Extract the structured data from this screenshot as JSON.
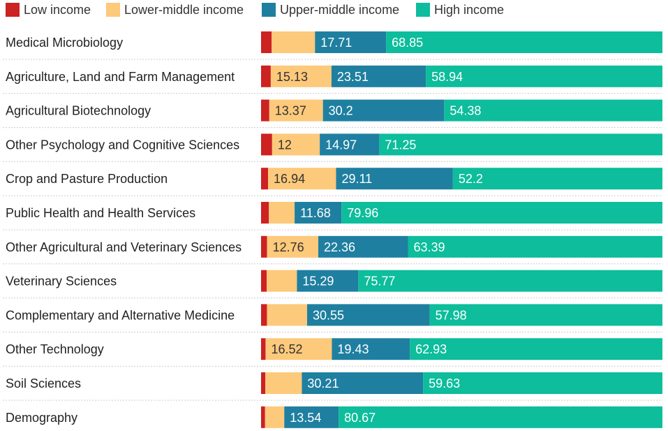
{
  "chart_data": {
    "type": "bar",
    "orientation": "horizontal",
    "stacked": true,
    "legend_position": "top-left",
    "colors": {
      "Low income": "#cc2222",
      "Lower-middle income": "#fdc97b",
      "Upper-middle income": "#1f7fa0",
      "High income": "#0dbd9c"
    },
    "series_names": [
      "Low income",
      "Lower-middle income",
      "Upper-middle income",
      "High income"
    ],
    "categories": [
      "Medical Microbiology",
      "Agriculture, Land and Farm Management",
      "Agricultural Biotechnology",
      "Other Psychology and Cognitive Sciences",
      "Crop and Pasture Production",
      "Public Health and Health Services",
      "Other Agricultural and Veterinary Sciences",
      "Veterinary Sciences",
      "Complementary and Alternative Medicine",
      "Other Technology",
      "Soil Sciences",
      "Demography"
    ],
    "series": [
      {
        "name": "Low income",
        "values": [
          2.64,
          2.42,
          2.05,
          2.78,
          1.75,
          1.95,
          1.49,
          1.39,
          1.47,
          1.12,
          1.06,
          1.0
        ]
      },
      {
        "name": "Lower-middle income",
        "values": [
          10.8,
          15.13,
          13.37,
          12,
          16.94,
          6.41,
          12.76,
          7.55,
          10.0,
          16.52,
          9.1,
          4.79
        ]
      },
      {
        "name": "Upper-middle income",
        "values": [
          17.71,
          23.51,
          30.2,
          14.97,
          29.11,
          11.68,
          22.36,
          15.29,
          30.55,
          19.43,
          30.21,
          13.54
        ]
      },
      {
        "name": "High income",
        "values": [
          68.85,
          58.94,
          54.38,
          71.25,
          52.2,
          79.96,
          63.39,
          75.77,
          57.98,
          62.93,
          59.63,
          80.67
        ]
      }
    ],
    "data_labels": [
      [
        "",
        "",
        "17.71",
        "68.85"
      ],
      [
        "",
        "15.13",
        "23.51",
        "58.94"
      ],
      [
        "",
        "13.37",
        "30.2",
        "54.38"
      ],
      [
        "",
        "12",
        "14.97",
        "71.25"
      ],
      [
        "",
        "16.94",
        "29.11",
        "52.2"
      ],
      [
        "",
        "",
        "11.68",
        "79.96"
      ],
      [
        "",
        "12.76",
        "22.36",
        "63.39"
      ],
      [
        "",
        "",
        "15.29",
        "75.77"
      ],
      [
        "",
        "",
        "30.55",
        "57.98"
      ],
      [
        "",
        "16.52",
        "19.43",
        "62.93"
      ],
      [
        "",
        "",
        "30.21",
        "59.63"
      ],
      [
        "",
        "",
        "13.54",
        "80.67"
      ]
    ],
    "xlim": [
      0,
      100
    ],
    "grid": false
  }
}
